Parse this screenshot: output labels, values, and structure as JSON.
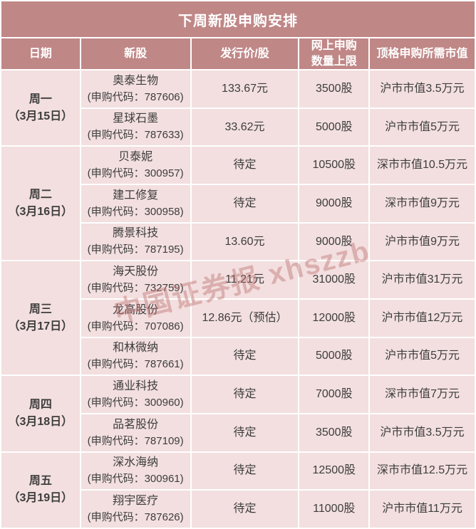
{
  "title": "下周新股申购安排",
  "watermark": "中国证券报 xhszzb",
  "colors": {
    "header_rose": "#c08787",
    "cell_pink": "#f3dfdf",
    "header_text": "#ffffff",
    "body_text": "#3d3d3d",
    "watermark_rose": "#bf7676"
  },
  "chart_data": {
    "type": "table",
    "title": "下周新股申购安排",
    "columns": {
      "date": "日期",
      "stock": "新股",
      "price": "发行价/股",
      "limit_line1": "网上申购",
      "limit_line2": "数量上限",
      "value": "顶格申购所需市值"
    },
    "groups": [
      {
        "day": "周一",
        "date": "（3月15日）",
        "stocks": [
          {
            "name": "奥泰生物",
            "code": "(申购代码：787606)",
            "price": "133.67元",
            "limit": "3500股",
            "value": "沪市市值3.5万元"
          },
          {
            "name": "星球石墨",
            "code": "(申购代码：787633)",
            "price": "33.62元",
            "limit": "5000股",
            "value": "沪市市值5万元"
          }
        ]
      },
      {
        "day": "周二",
        "date": "（3月16日）",
        "stocks": [
          {
            "name": "贝泰妮",
            "code": "(申购代码：300957)",
            "price": "待定",
            "limit": "10500股",
            "value": "深市市值10.5万元"
          },
          {
            "name": "建工修复",
            "code": "(申购代码：300958)",
            "price": "待定",
            "limit": "9000股",
            "value": "深市市值9万元"
          },
          {
            "name": "腾景科技",
            "code": "(申购代码：787195)",
            "price": "13.60元",
            "limit": "9000股",
            "value": "沪市市值9万元"
          }
        ]
      },
      {
        "day": "周三",
        "date": "（3月17日）",
        "stocks": [
          {
            "name": "海天股份",
            "code": "(申购代码：732759)",
            "price": "11.21元",
            "limit": "31000股",
            "value": "沪市市值31万元"
          },
          {
            "name": "龙高股份",
            "code": "(申购代码：707086)",
            "price": "12.86元（预估）",
            "limit": "12000股",
            "value": "沪市市值12万元"
          },
          {
            "name": "和林微纳",
            "code": "(申购代码：787661)",
            "price": "待定",
            "limit": "5000股",
            "value": "沪市市值5万元"
          }
        ]
      },
      {
        "day": "周四",
        "date": "（3月18日）",
        "stocks": [
          {
            "name": "通业科技",
            "code": "(申购代码：300960)",
            "price": "待定",
            "limit": "7000股",
            "value": "深市市值7万元"
          },
          {
            "name": "品茗股份",
            "code": "(申购代码：787109)",
            "price": "待定",
            "limit": "3500股",
            "value": "沪市市值3.5万元"
          }
        ]
      },
      {
        "day": "周五",
        "date": "（3月19日）",
        "stocks": [
          {
            "name": "深水海纳",
            "code": "(申购代码：300961)",
            "price": "待定",
            "limit": "12500股",
            "value": "深市市值12.5万元"
          },
          {
            "name": "翔宇医疗",
            "code": "(申购代码：787626)",
            "price": "待定",
            "limit": "11000股",
            "value": "沪市市值11万元"
          }
        ]
      }
    ]
  }
}
